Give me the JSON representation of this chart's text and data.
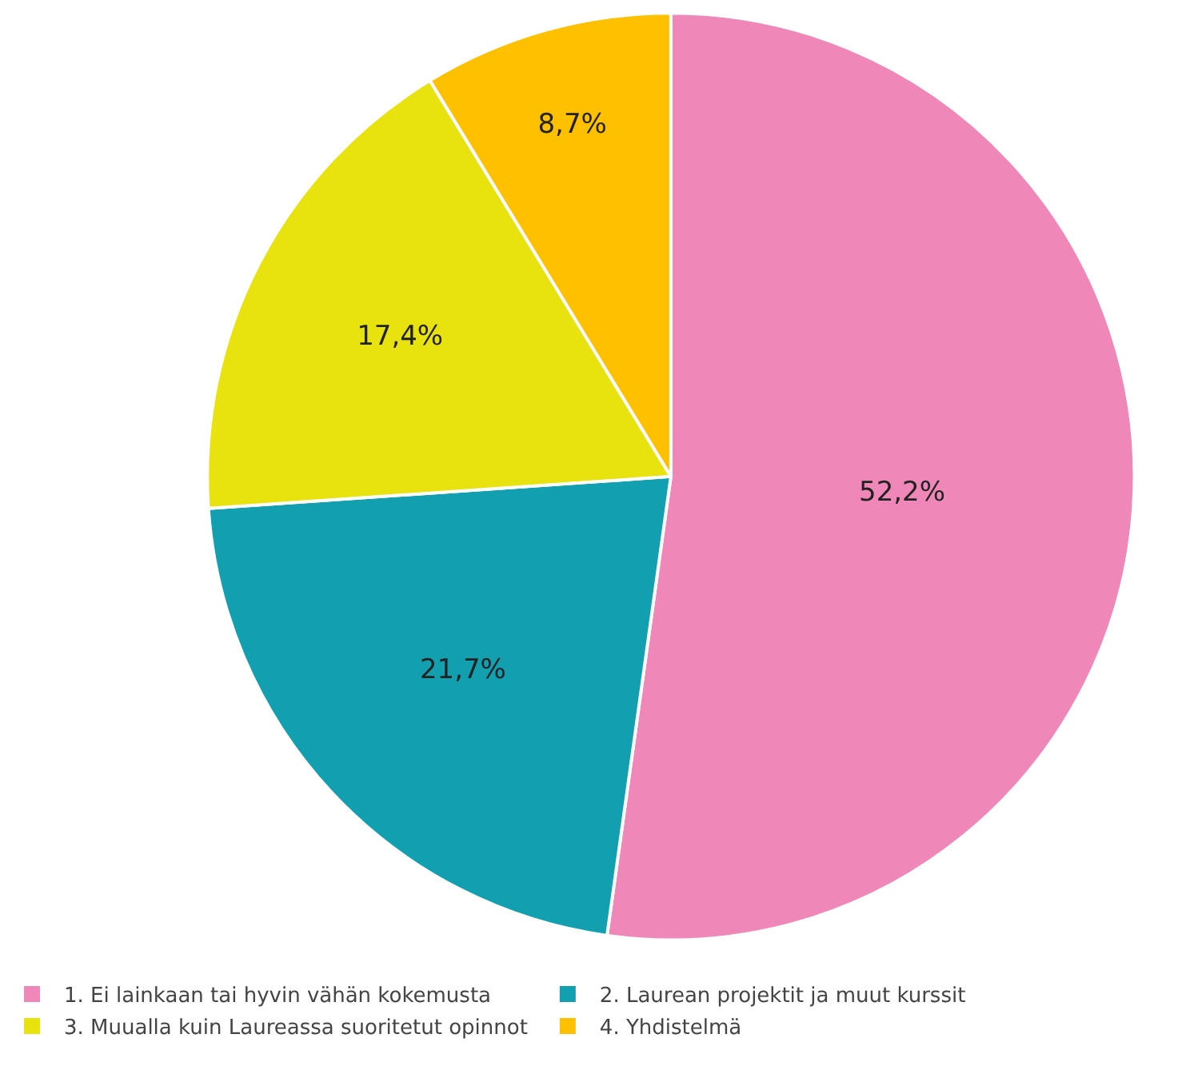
{
  "chart_data": {
    "type": "pie",
    "categories": [
      "1. Ei lainkaan tai hyvin vähän kokemusta",
      "2. Laurean projektit ja muut kurssit",
      "3. Muualla kuin Laureassa suoritetut opinnot",
      "4. Yhdistelmä"
    ],
    "values": [
      52.2,
      21.7,
      17.4,
      8.7
    ],
    "colors": [
      "#ef88b8",
      "#12a0b0",
      "#e8e20e",
      "#ffc000"
    ],
    "value_labels": [
      "52,2%",
      "21,7%",
      "17,4%",
      "8,7%"
    ],
    "legend": "bottom"
  }
}
